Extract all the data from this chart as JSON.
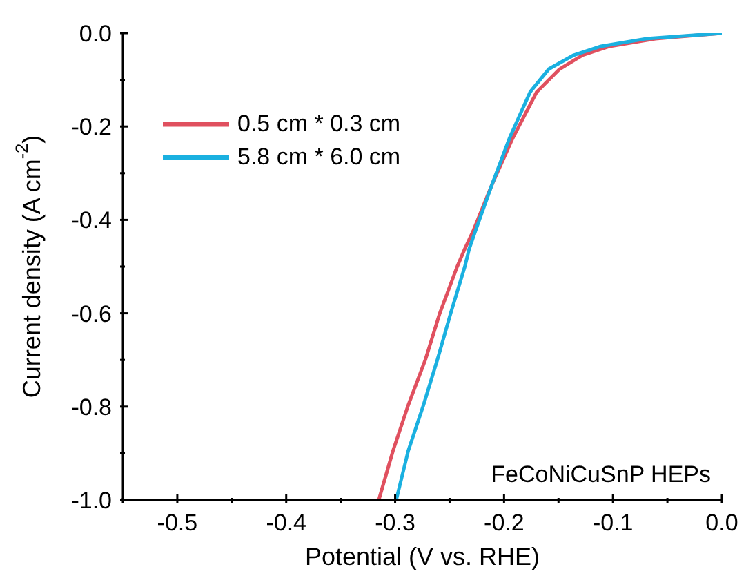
{
  "chart_data": {
    "type": "line",
    "xlabel": "Potential (V vs. RHE)",
    "ylabel": "Current density (A cm$^{-2}$)",
    "xlim": [
      -0.55,
      0
    ],
    "ylim": [
      -1,
      0
    ],
    "xticks": [
      {
        "value": -0.55,
        "label": null
      },
      -0.5,
      {
        "value": -0.45,
        "label": null
      },
      -0.4,
      {
        "value": -0.35,
        "label": null
      },
      -0.3,
      {
        "value": -0.25,
        "label": null
      },
      -0.2,
      {
        "value": -0.15,
        "label": null
      },
      -0.1,
      {
        "value": -0.05,
        "label": null
      },
      {
        "value": 0,
        "label": "0.0"
      }
    ],
    "yticks": [
      {
        "value": -1,
        "label": "-1.0"
      },
      {
        "value": -0.9,
        "label": null
      },
      -0.8,
      {
        "value": -0.7,
        "label": null
      },
      -0.6,
      {
        "value": -0.5,
        "label": null
      },
      -0.4,
      {
        "value": -0.3,
        "label": null
      },
      -0.2,
      {
        "value": -0.1,
        "label": null
      },
      {
        "value": 0,
        "label": "0.0"
      }
    ],
    "legend": "top left",
    "grid": false,
    "marker": "none",
    "line_style": "solid",
    "series": [
      {
        "name": "0.5 cm * 0.3 cm",
        "color": "#e0505f",
        "x": [
          -0.315,
          -0.302,
          -0.288,
          -0.272,
          -0.259,
          -0.243,
          -0.236,
          -0.228,
          -0.211,
          -0.192,
          -0.17,
          -0.149,
          -0.128,
          -0.103,
          -0.061,
          0
        ],
        "values": [
          -1,
          -0.895,
          -0.797,
          -0.698,
          -0.6,
          -0.5,
          -0.462,
          -0.422,
          -0.324,
          -0.225,
          -0.126,
          -0.077,
          -0.047,
          -0.028,
          -0.012,
          0
        ]
      },
      {
        "name": "5.8 cm * 6.0 cm",
        "color": "#1ab0e0",
        "x": [
          -0.299,
          -0.288,
          -0.274,
          -0.261,
          -0.249,
          -0.236,
          -0.232,
          -0.226,
          -0.211,
          -0.195,
          -0.176,
          -0.159,
          -0.136,
          -0.111,
          -0.07,
          0
        ],
        "values": [
          -1,
          -0.895,
          -0.797,
          -0.698,
          -0.6,
          -0.5,
          -0.462,
          -0.422,
          -0.324,
          -0.225,
          -0.126,
          -0.077,
          -0.047,
          -0.028,
          -0.012,
          0
        ]
      }
    ],
    "annotations": [
      "FeCoNiCuSnP HEPs"
    ]
  }
}
